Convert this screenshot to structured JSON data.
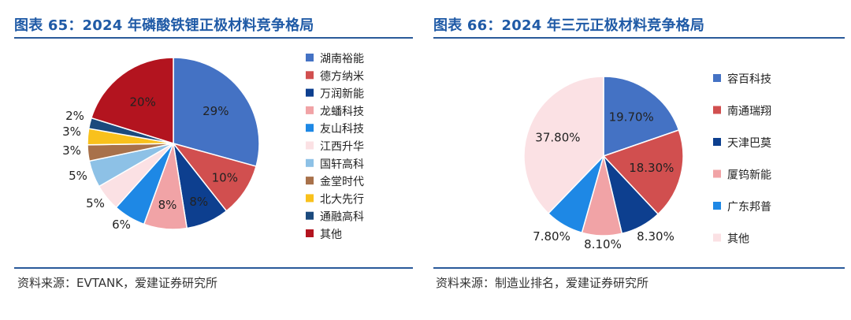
{
  "charts": [
    {
      "figure_title": "图表 65：2024 年磷酸铁锂正极材料竞争格局",
      "source": "资料来源：EVTANK，爱建证券研究所"
    },
    {
      "figure_title": "图表 66：2024 年三元正极材料竞争格局",
      "source": "资料来源：制造业排名，爱建证券研究所"
    }
  ],
  "chart_data": [
    {
      "type": "pie",
      "title": "图表 65：2024 年磷酸铁锂正极材料竞争格局",
      "categories": [
        "湖南裕能",
        "德方纳米",
        "万润新能",
        "龙蟠科技",
        "友山科技",
        "江西升华",
        "国轩高科",
        "金堂时代",
        "北大先行",
        "通融高科",
        "其他"
      ],
      "values": [
        29,
        10,
        8,
        8,
        6,
        5,
        5,
        3,
        3,
        2,
        20
      ],
      "labels": [
        "29%",
        "10%",
        "8%",
        "8%",
        "6%",
        "5%",
        "5%",
        "3%",
        "3%",
        "2%",
        "20%"
      ],
      "colors": [
        "#4472c4",
        "#d14f4f",
        "#0d3f8f",
        "#f1a3a6",
        "#1e88e5",
        "#fbe1e4",
        "#8dc1e6",
        "#a8714a",
        "#f9c11c",
        "#1b4a7d",
        "#b3141f"
      ],
      "legend_position": "right"
    },
    {
      "type": "pie",
      "title": "图表 66：2024 年三元正极材料竞争格局",
      "categories": [
        "容百科技",
        "南通瑞翔",
        "天津巴莫",
        "厦钨新能",
        "广东邦普",
        "其他"
      ],
      "values": [
        19.7,
        18.3,
        8.3,
        8.1,
        7.8,
        37.8
      ],
      "labels": [
        "19.70%",
        "18.30%",
        "8.30%",
        "8.10%",
        "7.80%",
        "37.80%"
      ],
      "colors": [
        "#4472c4",
        "#d14f4f",
        "#0d3f8f",
        "#f1a3a6",
        "#1e88e5",
        "#fbe1e4"
      ],
      "legend_position": "right"
    }
  ]
}
